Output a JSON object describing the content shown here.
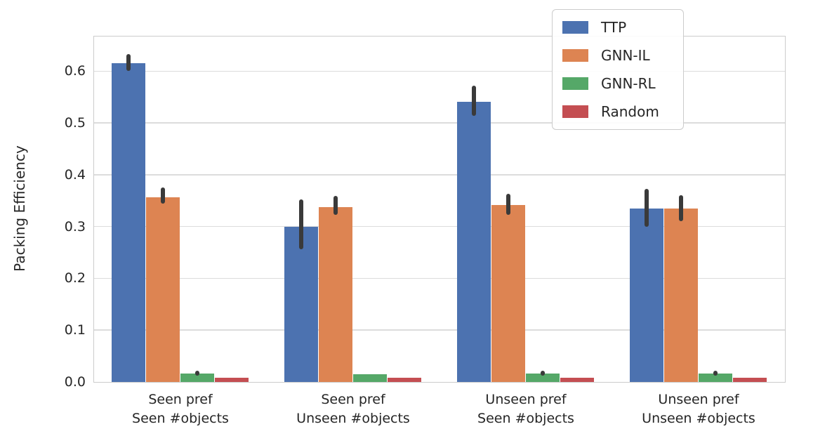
{
  "chart_data": {
    "type": "bar",
    "title": "",
    "xlabel": "",
    "ylabel": "Packing Efficiency",
    "ylim": [
      0,
      0.667
    ],
    "yticks": [
      0.0,
      0.1,
      0.2,
      0.3,
      0.4,
      0.5,
      0.6
    ],
    "grid": true,
    "legend_position": "upper right",
    "background": "#ffffff",
    "gridline_color": "#dcdcdc",
    "spine_color": "#cccccc",
    "error_color": "#3a3a3a",
    "categories": [
      [
        "Seen pref",
        "Seen #objects"
      ],
      [
        "Seen pref",
        "Unseen #objects"
      ],
      [
        "Unseen pref",
        "Seen #objects"
      ],
      [
        "Unseen pref",
        "Unseen #objects"
      ]
    ],
    "series": [
      {
        "name": "TTP",
        "color": "#4C72B0",
        "values": [
          0.615,
          0.299,
          0.541,
          0.335
        ],
        "errors": [
          [
            0.6,
            0.633
          ],
          [
            0.256,
            0.353
          ],
          [
            0.514,
            0.572
          ],
          [
            0.299,
            0.373
          ]
        ]
      },
      {
        "name": "GNN-IL",
        "color": "#DD8452",
        "values": [
          0.356,
          0.337,
          0.342,
          0.335
        ],
        "errors": [
          [
            0.344,
            0.376
          ],
          [
            0.323,
            0.36
          ],
          [
            0.323,
            0.364
          ],
          [
            0.311,
            0.361
          ]
        ]
      },
      {
        "name": "GNN-RL",
        "color": "#55A868",
        "values": [
          0.017,
          0.015,
          0.016,
          0.016
        ],
        "errors": [
          [
            0.012,
            0.022
          ],
          null,
          [
            0.012,
            0.022
          ],
          [
            0.012,
            0.022
          ]
        ]
      },
      {
        "name": "Random",
        "color": "#C44E52",
        "values": [
          0.008,
          0.008,
          0.008,
          0.008
        ],
        "errors": [
          null,
          null,
          null,
          null
        ]
      }
    ]
  }
}
